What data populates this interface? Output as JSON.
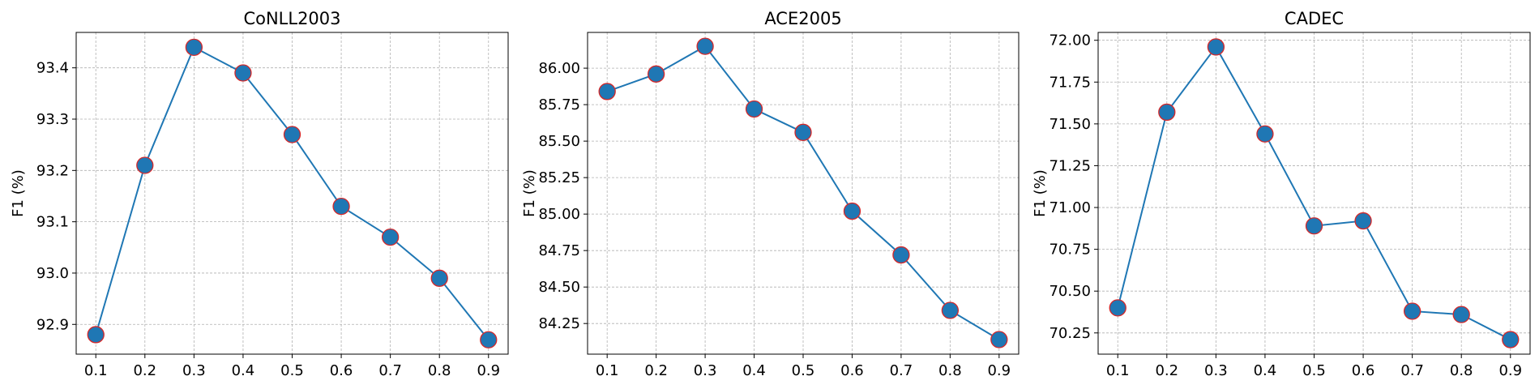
{
  "chart_data": [
    {
      "type": "line",
      "title": "CoNLL2003",
      "xlabel": "",
      "ylabel": "F1 (%)",
      "x": [
        0.1,
        0.2,
        0.3,
        0.4,
        0.5,
        0.6,
        0.7,
        0.8,
        0.9
      ],
      "y": [
        92.88,
        93.21,
        93.44,
        93.39,
        93.27,
        93.13,
        93.07,
        92.99,
        92.87
      ],
      "xticks": [
        "0.1",
        "0.2",
        "0.3",
        "0.4",
        "0.5",
        "0.6",
        "0.7",
        "0.8",
        "0.9"
      ],
      "yticks": [
        "92.9",
        "93.0",
        "93.1",
        "93.2",
        "93.3",
        "93.4"
      ],
      "ylim": [
        92.842,
        93.469
      ],
      "xlim": [
        0.06,
        0.94
      ],
      "grid": true,
      "line_color": "#1f77b4",
      "marker_face": "#1f77b4",
      "marker_edge": "#d62728"
    },
    {
      "type": "line",
      "title": "ACE2005",
      "xlabel": "",
      "ylabel": "F1 (%)",
      "x": [
        0.1,
        0.2,
        0.3,
        0.4,
        0.5,
        0.6,
        0.7,
        0.8,
        0.9
      ],
      "y": [
        85.84,
        85.96,
        86.15,
        85.72,
        85.56,
        85.02,
        84.72,
        84.34,
        84.14
      ],
      "xticks": [
        "0.1",
        "0.2",
        "0.3",
        "0.4",
        "0.5",
        "0.6",
        "0.7",
        "0.8",
        "0.9"
      ],
      "yticks": [
        "84.25",
        "84.50",
        "84.75",
        "85.00",
        "85.25",
        "85.50",
        "85.75",
        "86.00"
      ],
      "ylim": [
        84.04,
        86.245
      ],
      "xlim": [
        0.06,
        0.94
      ],
      "grid": true,
      "line_color": "#1f77b4",
      "marker_face": "#1f77b4",
      "marker_edge": "#d62728"
    },
    {
      "type": "line",
      "title": "CADEC",
      "xlabel": "",
      "ylabel": "F1 (%)",
      "x": [
        0.1,
        0.2,
        0.3,
        0.4,
        0.5,
        0.6,
        0.7,
        0.8,
        0.9
      ],
      "y": [
        70.4,
        71.57,
        71.96,
        71.44,
        70.89,
        70.92,
        70.38,
        70.36,
        70.21
      ],
      "xticks": [
        "0.1",
        "0.2",
        "0.3",
        "0.4",
        "0.5",
        "0.6",
        "0.7",
        "0.8",
        "0.9"
      ],
      "yticks": [
        "70.25",
        "70.50",
        "70.75",
        "71.00",
        "71.25",
        "71.50",
        "71.75",
        "72.00"
      ],
      "ylim": [
        70.123,
        72.047
      ],
      "xlim": [
        0.06,
        0.94
      ],
      "grid": true,
      "line_color": "#1f77b4",
      "marker_face": "#1f77b4",
      "marker_edge": "#d62728"
    }
  ]
}
